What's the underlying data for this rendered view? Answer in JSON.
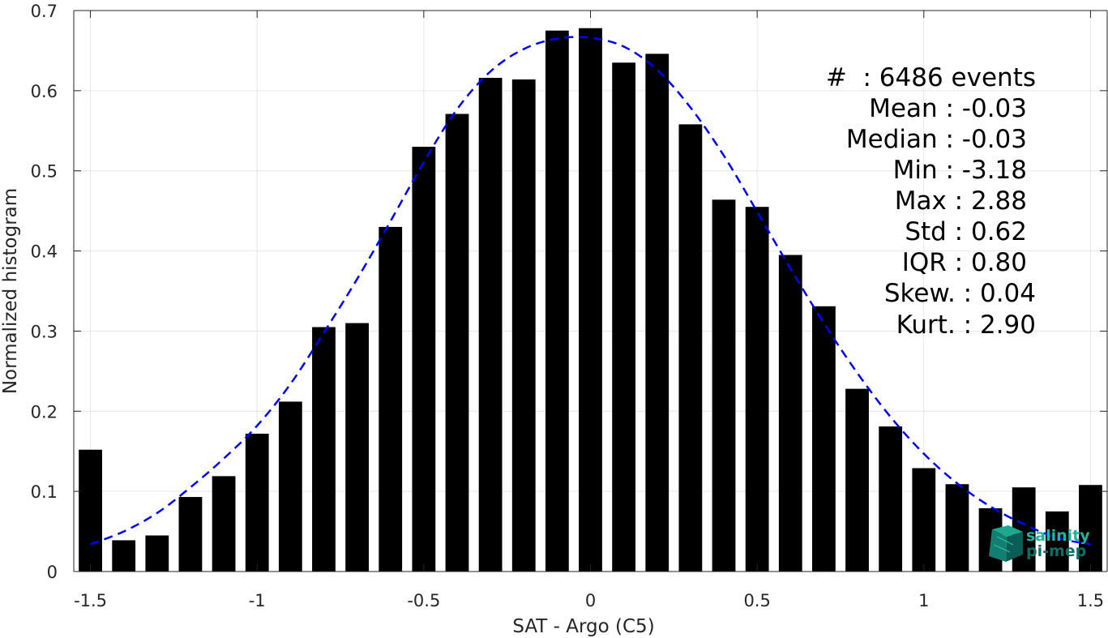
{
  "chart_data": {
    "type": "bar",
    "title": "",
    "xlabel": "SAT - Argo (C5)",
    "ylabel": "Normalized histogram",
    "xlim": [
      -1.55,
      1.55
    ],
    "ylim": [
      0,
      0.7
    ],
    "grid": true,
    "bar_width": 0.07,
    "x_ticks": [
      -1.5,
      -1,
      -0.5,
      0,
      0.5,
      1,
      1.5
    ],
    "x_tick_labels": [
      "-1.5",
      "-1",
      "-0.5",
      "0",
      "0.5",
      "1",
      "1.5"
    ],
    "y_ticks": [
      0,
      0.1,
      0.2,
      0.3,
      0.4,
      0.5,
      0.6,
      0.7
    ],
    "y_tick_labels": [
      "0",
      "0.1",
      "0.2",
      "0.3",
      "0.4",
      "0.5",
      "0.6",
      "0.7"
    ],
    "series": [
      {
        "type": "bar",
        "color": "#000000",
        "x": [
          -1.5,
          -1.4,
          -1.3,
          -1.2,
          -1.1,
          -1.0,
          -0.9,
          -0.8,
          -0.7,
          -0.6,
          -0.5,
          -0.4,
          -0.3,
          -0.2,
          -0.1,
          0.0,
          0.1,
          0.2,
          0.3,
          0.4,
          0.5,
          0.6,
          0.7,
          0.8,
          0.9,
          1.0,
          1.1,
          1.2,
          1.3,
          1.4,
          1.5
        ],
        "values": [
          0.152,
          0.039,
          0.045,
          0.093,
          0.119,
          0.172,
          0.212,
          0.305,
          0.31,
          0.43,
          0.53,
          0.571,
          0.616,
          0.614,
          0.675,
          0.678,
          0.635,
          0.646,
          0.558,
          0.464,
          0.455,
          0.395,
          0.331,
          0.228,
          0.181,
          0.129,
          0.109,
          0.079,
          0.105,
          0.075,
          0.108
        ]
      },
      {
        "type": "line",
        "style": "dashed",
        "color": "#0000ff",
        "x": [
          -1.5,
          -1.4,
          -1.3,
          -1.2,
          -1.1,
          -1.0,
          -0.9,
          -0.8,
          -0.7,
          -0.6,
          -0.5,
          -0.4,
          -0.3,
          -0.2,
          -0.1,
          0.0,
          0.1,
          0.2,
          0.3,
          0.4,
          0.5,
          0.6,
          0.7,
          0.8,
          0.9,
          1.0,
          1.1,
          1.2,
          1.3,
          1.4,
          1.5
        ],
        "values": [
          0.034,
          0.05,
          0.073,
          0.105,
          0.141,
          0.182,
          0.234,
          0.298,
          0.365,
          0.437,
          0.511,
          0.577,
          0.624,
          0.652,
          0.665,
          0.666,
          0.655,
          0.626,
          0.579,
          0.519,
          0.449,
          0.378,
          0.31,
          0.248,
          0.193,
          0.147,
          0.11,
          0.081,
          0.059,
          0.042,
          0.034
        ]
      }
    ]
  },
  "stats_box": {
    "lines": [
      "#  : 6486 events",
      "Mean : -0.03",
      "Median : -0.03",
      "Min : -3.18",
      "Max : 2.88",
      "Std : 0.62",
      "IQR : 0.80",
      "Skew. : 0.04",
      "Kurt. : 2.90"
    ]
  },
  "logo": {
    "line1": "salinity",
    "line2": "pi-mep",
    "color1": "#1fb5a0",
    "color2": "#0e6e66"
  }
}
